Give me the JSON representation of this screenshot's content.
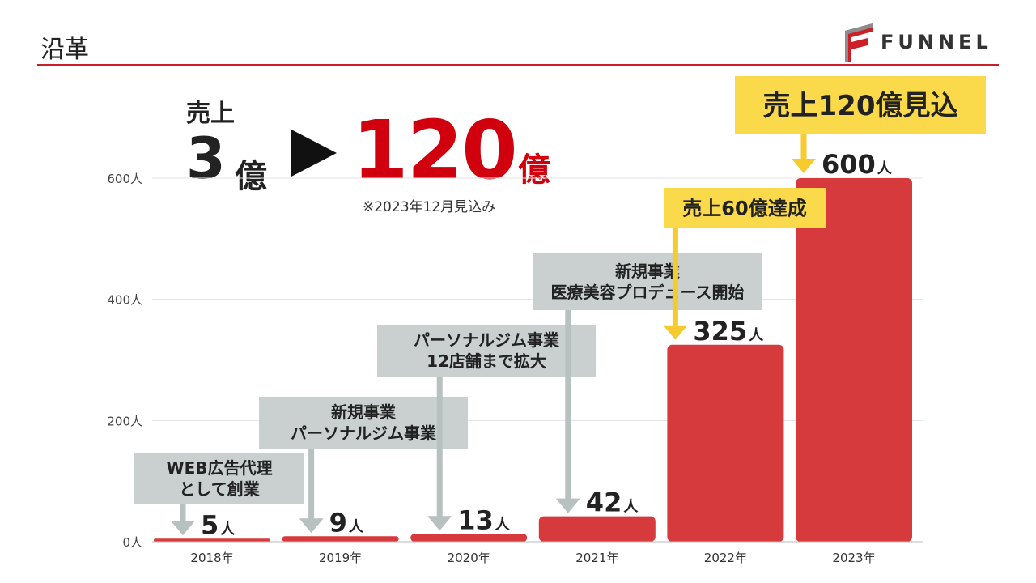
{
  "header": {
    "title": "沿革",
    "logo_text": "FUNNEL",
    "colors": {
      "accent": "#c8202a",
      "bar": "#d63a3c",
      "note_box": "#c9d0cf",
      "note_arrow": "#b7c1bf",
      "highlight_box": "#fad94a",
      "highlight_arrow": "#f6cb2f"
    }
  },
  "headline": {
    "label": "売上",
    "from_value": "3",
    "from_unit": "億",
    "to_value": "120",
    "to_unit": "億",
    "note": "※2023年12月見込み"
  },
  "chart_data": {
    "type": "bar",
    "title": "沿革",
    "categories": [
      "2018年",
      "2019年",
      "2020年",
      "2021年",
      "2022年",
      "2023年"
    ],
    "values": [
      5,
      9,
      13,
      42,
      325,
      600
    ],
    "value_labels": [
      "5",
      "9",
      "13",
      "42",
      "325",
      "600"
    ],
    "value_unit": "人",
    "ylim": [
      0,
      600
    ],
    "yticks": [
      0,
      200,
      400,
      600
    ],
    "ytick_labels": [
      "0人",
      "200人",
      "400人",
      "600人"
    ],
    "xlabel": "",
    "ylabel": "",
    "grid": true,
    "annotations": [
      {
        "category": "2018年",
        "style": "note",
        "lines": [
          "WEB広告代理",
          "として創業"
        ]
      },
      {
        "category": "2019年",
        "style": "note",
        "lines": [
          "新規事業",
          "パーソナルジム事業"
        ]
      },
      {
        "category": "2020年",
        "style": "note",
        "lines": [
          "パーソナルジム事業",
          "12店舗まで拡大"
        ]
      },
      {
        "category": "2021年",
        "style": "note",
        "lines": [
          "新規事業",
          "医療美容プロデュース開始"
        ]
      },
      {
        "category": "2022年",
        "style": "highlight",
        "lines": [
          "売上60億達成"
        ]
      },
      {
        "category": "2023年",
        "style": "highlight",
        "lines": [
          "売上120億見込"
        ]
      }
    ]
  }
}
